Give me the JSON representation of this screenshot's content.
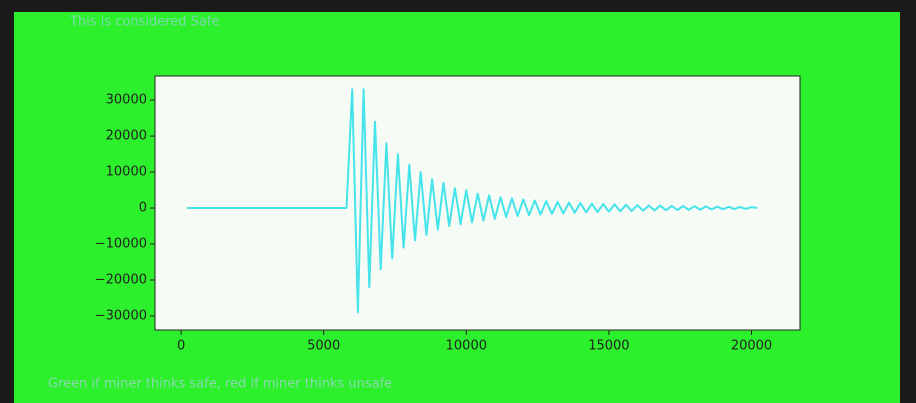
{
  "chart_data": {
    "type": "line",
    "title": "This is considered Safe",
    "caption": "Green if miner thinks safe, red if miner thinks unsafe",
    "x": [
      200,
      5800,
      6000,
      6200,
      6400,
      6600,
      6800,
      7000,
      7200,
      7400,
      7600,
      7800,
      8000,
      8200,
      8400,
      8600,
      8800,
      9000,
      9200,
      9400,
      9600,
      9800,
      10000,
      10200,
      10400,
      10600,
      10800,
      11000,
      11200,
      11400,
      11600,
      11800,
      12000,
      12200,
      12400,
      12600,
      12800,
      13000,
      13200,
      13400,
      13600,
      13800,
      14000,
      14200,
      14400,
      14600,
      14800,
      15000,
      15200,
      15400,
      15600,
      15800,
      16000,
      16200,
      16400,
      16600,
      16800,
      17000,
      17200,
      17400,
      17600,
      17800,
      18000,
      18200,
      18400,
      18600,
      18800,
      19000,
      19200,
      19400,
      19600,
      19800,
      20000,
      20200
    ],
    "series": [
      {
        "color": "#45e3ea",
        "values": [
          0,
          0,
          33000,
          -29000,
          33000,
          -22000,
          24000,
          -17000,
          18000,
          -14000,
          15000,
          -11000,
          12000,
          -9000,
          10000,
          -7500,
          8000,
          -6000,
          7000,
          -5000,
          5500,
          -4500,
          5000,
          -4000,
          4000,
          -3500,
          3500,
          -3000,
          3000,
          -2500,
          2700,
          -2200,
          2400,
          -2000,
          2100,
          -1800,
          1900,
          -1600,
          1700,
          -1500,
          1500,
          -1300,
          1400,
          -1200,
          1200,
          -1100,
          1100,
          -1000,
          1000,
          -900,
          900,
          -800,
          800,
          -700,
          700,
          -650,
          650,
          -600,
          600,
          -550,
          550,
          -500,
          500,
          -450,
          450,
          -400,
          400,
          -350,
          350,
          -300,
          300,
          -250,
          250,
          0
        ]
      }
    ],
    "xlim": [
      -915,
      21700
    ],
    "ylim": [
      -33900,
      36700
    ],
    "xticks": [
      0,
      5000,
      10000,
      15000,
      20000
    ],
    "yticks": [
      {
        "value": -30000,
        "label": "−30000"
      },
      {
        "value": -20000,
        "label": "−20000"
      },
      {
        "value": -10000,
        "label": "−10000"
      },
      0,
      10000,
      20000,
      30000
    ]
  }
}
